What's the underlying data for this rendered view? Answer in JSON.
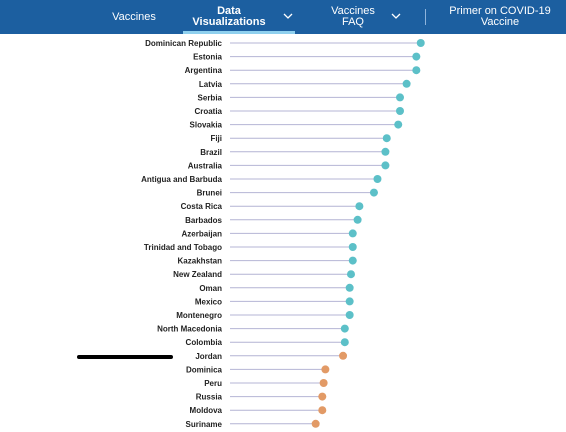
{
  "nav": {
    "items": [
      {
        "label": "Vaccines"
      },
      {
        "label_line1": "Data",
        "label_line2": "Visualizations"
      },
      {
        "label_line1": "Vaccines",
        "label_line2": "FAQ"
      },
      {
        "label_line1": "Primer on COVID-19",
        "label_line2": "Vaccine"
      }
    ]
  },
  "colors": {
    "nav_bg": "#1c5fa0",
    "above_color": "#5cc0c8",
    "below_color": "#e29a66",
    "stem_color": "#b4b4d4"
  },
  "chart_data": {
    "type": "lollipop",
    "orientation": "horizontal",
    "xlim": [
      0,
      1
    ],
    "categories": [
      "Dominican Republic",
      "Estonia",
      "Argentina",
      "Latvia",
      "Serbia",
      "Croatia",
      "Slovakia",
      "Fiji",
      "Brazil",
      "Australia",
      "Antigua and Barbuda",
      "Brunei",
      "Costa Rica",
      "Barbados",
      "Azerbaijan",
      "Trinidad and Tobago",
      "Kazakhstan",
      "New Zealand",
      "Oman",
      "Mexico",
      "Montenegro",
      "North Macedonia",
      "Colombia",
      "Jordan",
      "Dominica",
      "Peru",
      "Russia",
      "Moldova",
      "Suriname"
    ],
    "values": [
      0.953,
      0.943,
      0.943,
      0.921,
      0.906,
      0.906,
      0.902,
      0.876,
      0.873,
      0.873,
      0.855,
      0.847,
      0.814,
      0.81,
      0.799,
      0.799,
      0.799,
      0.795,
      0.792,
      0.792,
      0.792,
      0.781,
      0.781,
      0.777,
      0.737,
      0.733,
      0.73,
      0.73,
      0.715
    ],
    "groups": [
      "above",
      "above",
      "above",
      "above",
      "above",
      "above",
      "above",
      "above",
      "above",
      "above",
      "above",
      "above",
      "above",
      "above",
      "above",
      "above",
      "above",
      "above",
      "above",
      "above",
      "above",
      "above",
      "above",
      "below",
      "below",
      "below",
      "below",
      "below",
      "below"
    ]
  }
}
